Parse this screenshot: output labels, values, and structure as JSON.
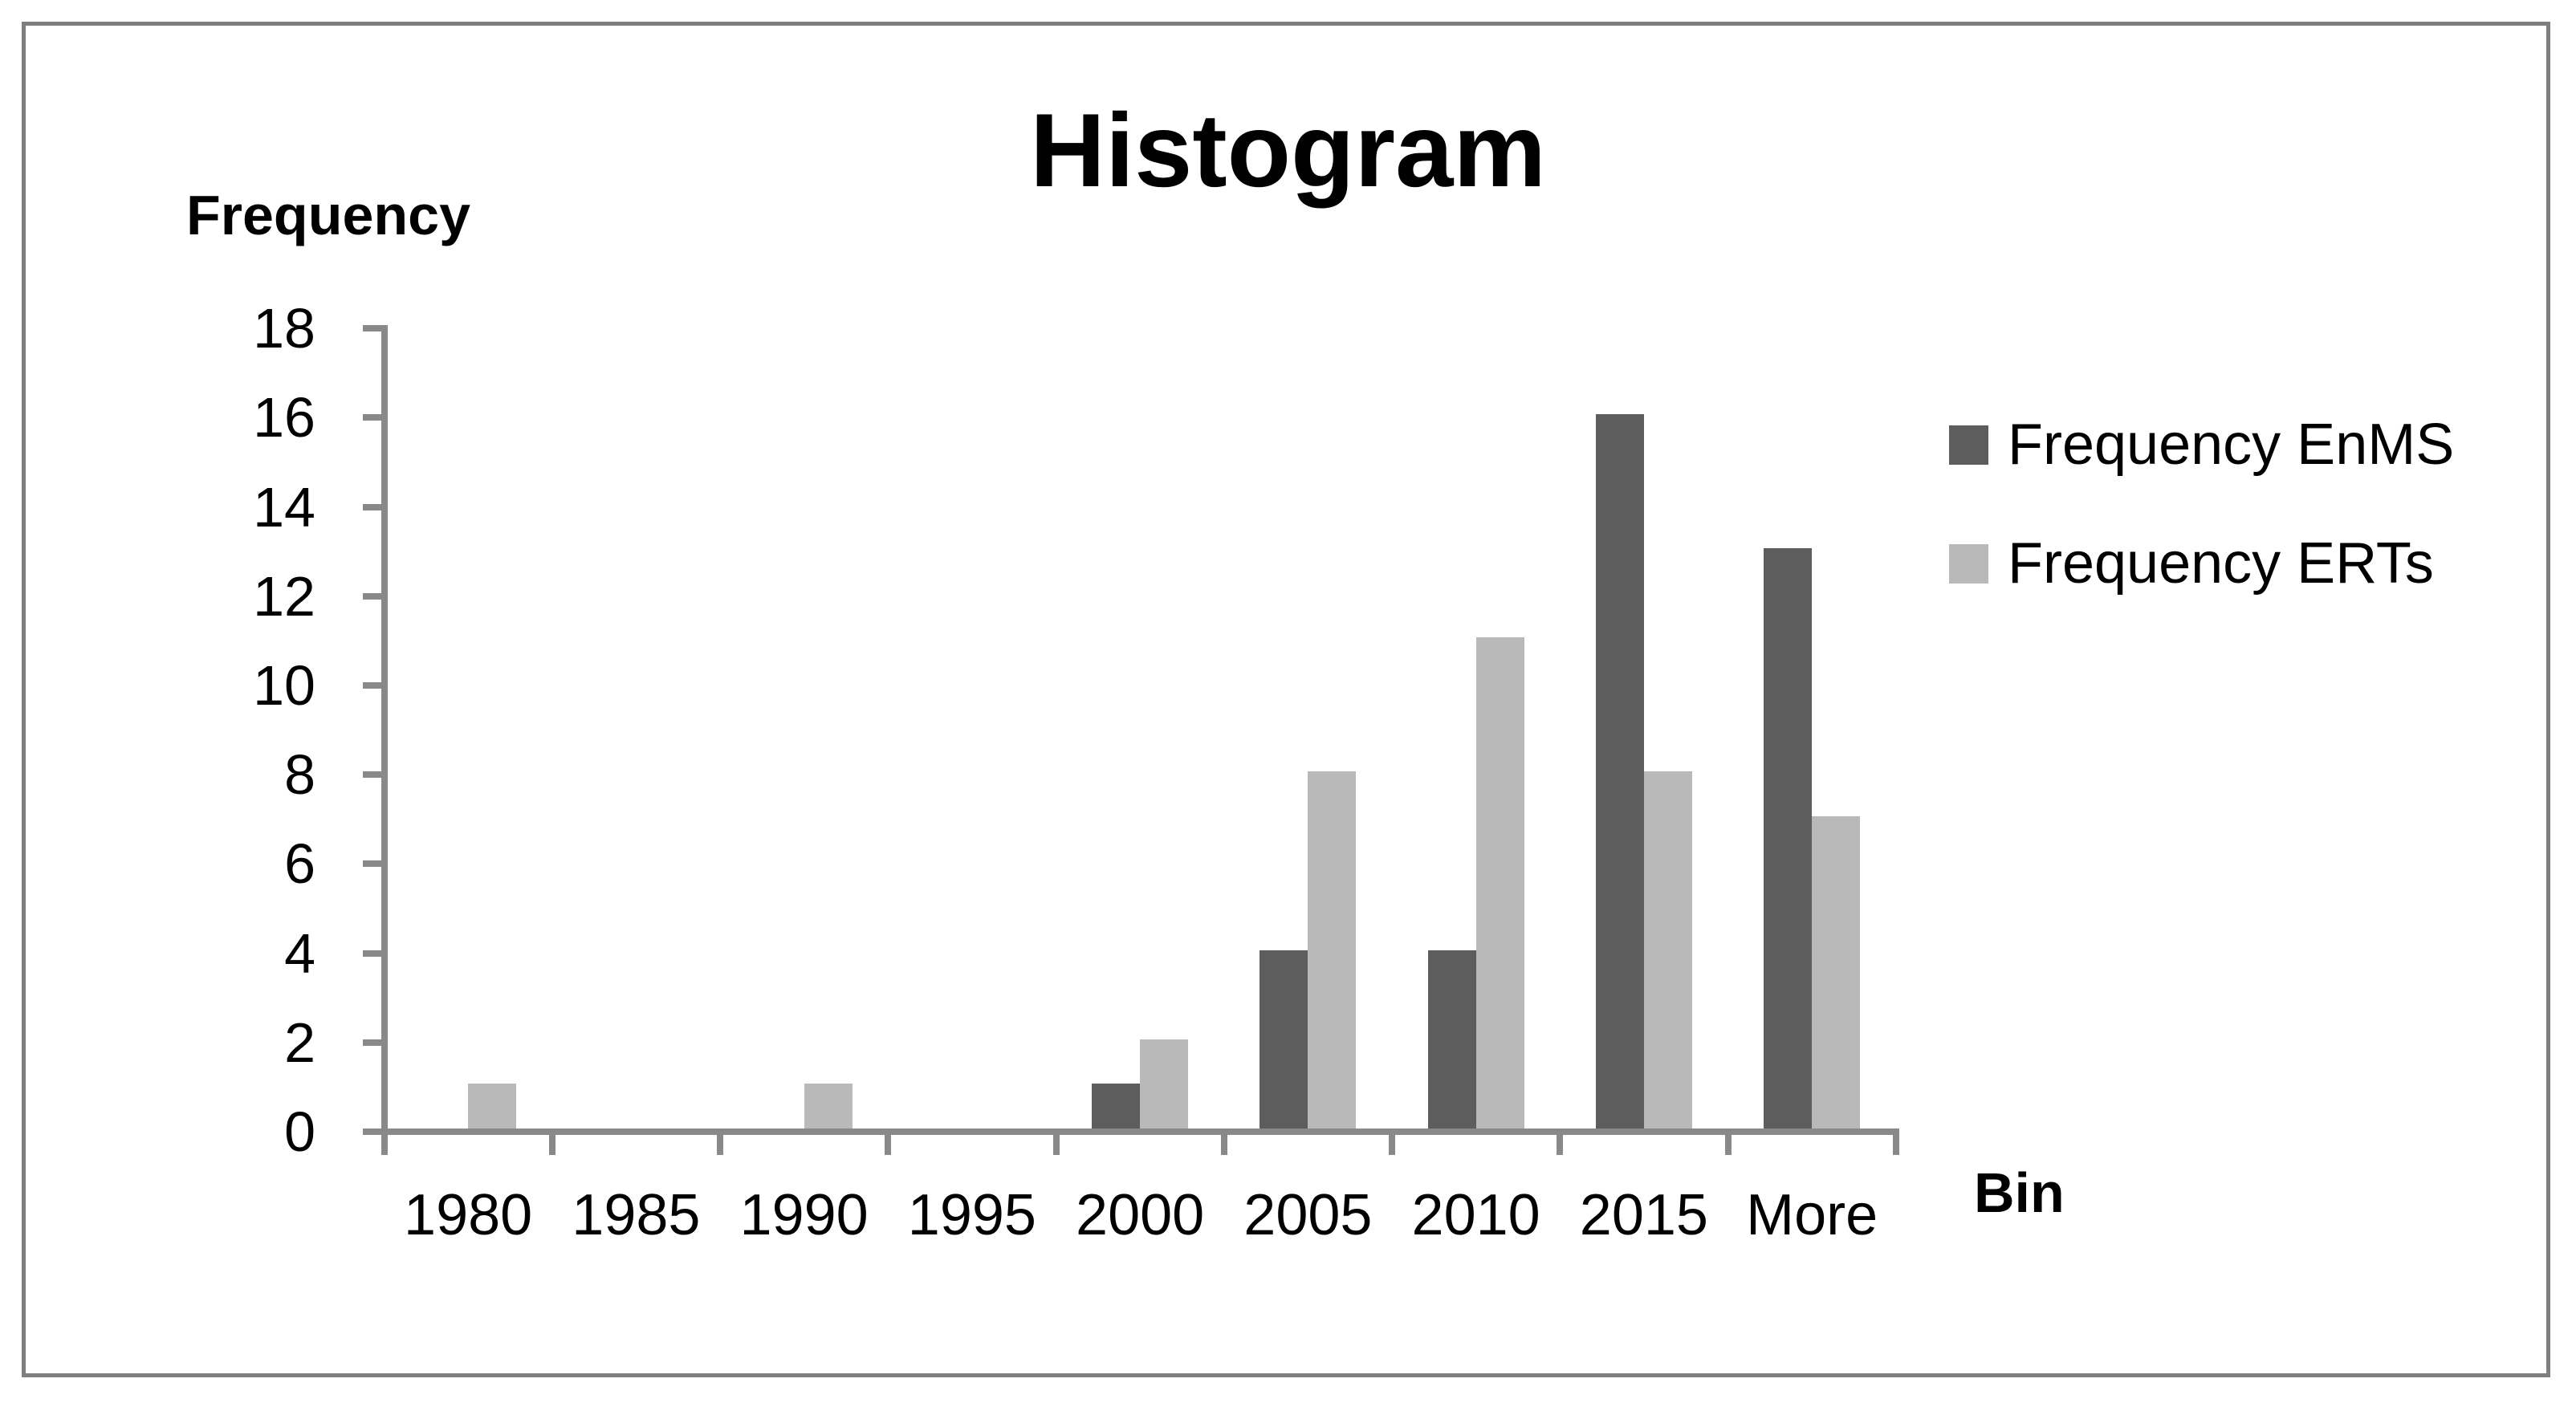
{
  "page": {
    "background": "#ffffff",
    "border_color": "#7f7f7f",
    "axis_color": "#898989"
  },
  "chart_data": {
    "type": "bar",
    "title": "Histogram",
    "xlabel": "Bin",
    "ylabel": "Frequency",
    "categories": [
      "1980",
      "1985",
      "1990",
      "1995",
      "2000",
      "2005",
      "2010",
      "2015",
      "More"
    ],
    "series": [
      {
        "name": "Frequency EnMS",
        "color": "#5d5d5d",
        "values": [
          0,
          0,
          0,
          0,
          1,
          4,
          4,
          16,
          13
        ]
      },
      {
        "name": "Frequency ERTs",
        "color": "#b9b9b9",
        "values": [
          1,
          0,
          1,
          0,
          2,
          8,
          11,
          8,
          7
        ]
      }
    ],
    "ylim": [
      0,
      18
    ],
    "ytick_step": 2,
    "y_ticks": [
      0,
      2,
      4,
      6,
      8,
      10,
      12,
      14,
      16,
      18
    ],
    "grid": false,
    "legend_position": "right",
    "bar_gap_in_cluster": 0
  },
  "legend": {
    "items": [
      {
        "label": "Frequency EnMS",
        "color": "#5d5d5d"
      },
      {
        "label": "Frequency ERTs",
        "color": "#b9b9b9"
      }
    ]
  }
}
